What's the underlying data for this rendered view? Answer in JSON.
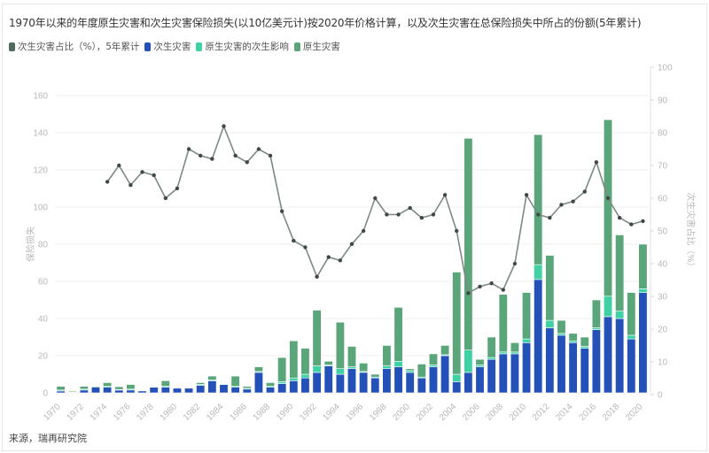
{
  "title": "1970年以来的年度原生灾害和次生灾害保险损失(以10亿美元计)按2020年价格计算，以及次生灾害在总保险损失中所占的份额(5年累计)",
  "legend": [
    {
      "label": "次生灾害占比（%），5年累计",
      "color": "#4f6b5e"
    },
    {
      "label": "次生灾害",
      "color": "#2451b8"
    },
    {
      "label": "原生灾害的次生影响",
      "color": "#3fd1a4"
    },
    {
      "label": "原生灾害",
      "color": "#5aa57a"
    }
  ],
  "source": "来源，瑞再研究院",
  "axes": {
    "left_label": "保险损失",
    "right_label": "次生灾害占比（%）",
    "left_ticks": [
      "0",
      "20",
      "40",
      "60",
      "80",
      "100",
      "120",
      "140",
      "160"
    ],
    "right_ticks": [
      "0",
      "10",
      "20",
      "30",
      "40",
      "50",
      "60",
      "70",
      "80",
      "90",
      "100"
    ]
  },
  "chart_data": {
    "type": "bar",
    "title": "1970年以来的年度原生灾害和次生灾害保险损失(以10亿美元计)按2020年价格计算，以及次生灾害在总保险损失中所占的份额(5年累计)",
    "xlabel": "",
    "ylabel": "保险损失",
    "y2label": "次生灾害占比（%）",
    "ylim": [
      0,
      170
    ],
    "y2lim": [
      0,
      100
    ],
    "grid": true,
    "legend_position": "top-left",
    "categories": [
      1970,
      1971,
      1972,
      1973,
      1974,
      1975,
      1976,
      1977,
      1978,
      1979,
      1980,
      1981,
      1982,
      1983,
      1984,
      1985,
      1986,
      1987,
      1988,
      1989,
      1990,
      1991,
      1992,
      1993,
      1994,
      1995,
      1996,
      1997,
      1998,
      1999,
      2000,
      2001,
      2002,
      2003,
      2004,
      2005,
      2006,
      2007,
      2008,
      2009,
      2010,
      2011,
      2012,
      2013,
      2014,
      2015,
      2016,
      2017,
      2018,
      2019,
      2020
    ],
    "x_tick_labels": [
      "1970",
      "1972",
      "1974",
      "1976",
      "1978",
      "1980",
      "1982",
      "1984",
      "1986",
      "1988",
      "1990",
      "1992",
      "1994",
      "1996",
      "1998",
      "2000",
      "2002",
      "2004",
      "2006",
      "2008",
      "2010",
      "2012",
      "2014",
      "2016",
      "2018",
      "2020"
    ],
    "series": [
      {
        "name": "次生灾害",
        "type": "bar",
        "stack": "total",
        "color": "#2451b8",
        "values": [
          1,
          0.3,
          1.5,
          3,
          3,
          1.5,
          1.5,
          1,
          3,
          3,
          2.5,
          2.5,
          4,
          6.5,
          4.5,
          3,
          2,
          11,
          3,
          5,
          6.5,
          8,
          11,
          14.5,
          10,
          13,
          11,
          8,
          13,
          14,
          11,
          8,
          14,
          20,
          6,
          11,
          14,
          18,
          21,
          21,
          27,
          61,
          35,
          31,
          27,
          24,
          34,
          41,
          40,
          29,
          54
        ]
      },
      {
        "name": "原生灾害的次生影响",
        "type": "bar",
        "stack": "total",
        "color": "#3fd1a4",
        "values": [
          0.5,
          0.3,
          0.5,
          0,
          0.5,
          0.3,
          0.5,
          0,
          0,
          0.5,
          0,
          0,
          0.5,
          0.5,
          0.3,
          0.5,
          0.5,
          0.5,
          0.5,
          1,
          1.5,
          2,
          3.5,
          0.5,
          3,
          1,
          0.5,
          0.5,
          1.5,
          3,
          1,
          0.5,
          1,
          0.5,
          4,
          12,
          1,
          1,
          1,
          1,
          2,
          8,
          4,
          1,
          1,
          1,
          1,
          11,
          4,
          2,
          2
        ]
      },
      {
        "name": "原生灾害",
        "type": "bar",
        "stack": "total",
        "color": "#5aa57a",
        "values": [
          2,
          0.5,
          1.5,
          0.5,
          2,
          1.5,
          2.5,
          0,
          0,
          3,
          0,
          0,
          1,
          2,
          0.2,
          5.5,
          1,
          2.5,
          2,
          13,
          20,
          14,
          30,
          2,
          25,
          11,
          4.5,
          1.5,
          11,
          29,
          1,
          7,
          6,
          5,
          55,
          114,
          3,
          11,
          31,
          5,
          25,
          70,
          35,
          7,
          4,
          5,
          15,
          95,
          41,
          23,
          24
        ]
      },
      {
        "name": "次生灾害占比（%），5年累计",
        "type": "line",
        "axis": "right",
        "color": "#4f6b5e",
        "start_year": 1974,
        "values": [
          65,
          70,
          64,
          68,
          67,
          60,
          63,
          75,
          73,
          72,
          82,
          73,
          71,
          75,
          73,
          56,
          47,
          45,
          36,
          42,
          41,
          46,
          50,
          60,
          55,
          55,
          57,
          54,
          55,
          61,
          50,
          31,
          33,
          34,
          32,
          40,
          61,
          55,
          54,
          58,
          59,
          62,
          71,
          60,
          54,
          52,
          53
        ]
      }
    ]
  }
}
